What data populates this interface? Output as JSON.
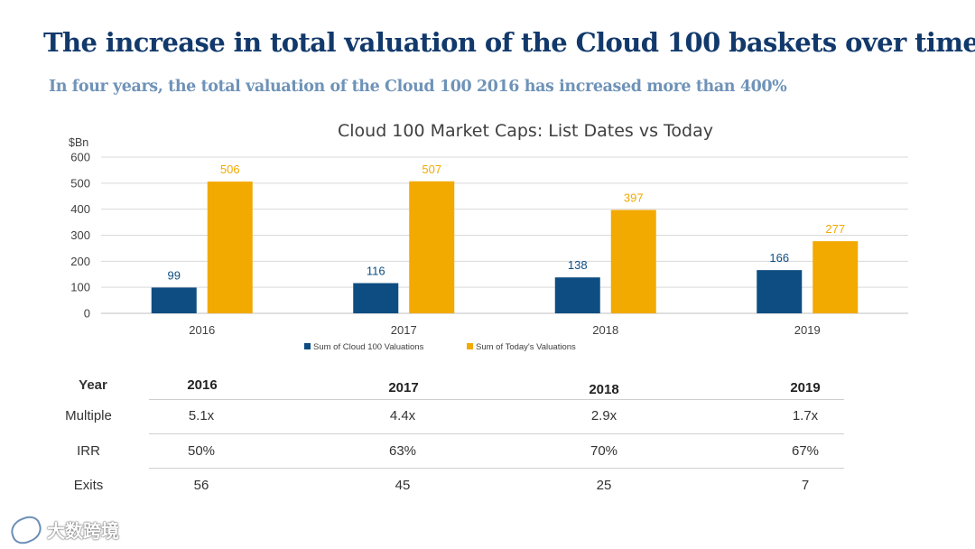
{
  "page": {
    "title": "The increase in total valuation of the Cloud 100 baskets over time",
    "subtitle": "In four years, the total valuation of the Cloud 100 2016 has increased more than 400%"
  },
  "chart_data": {
    "type": "bar",
    "title": "Cloud 100 Market Caps: List Dates vs Today",
    "ylabel": "$Bn",
    "categories": [
      "2016",
      "2017",
      "2018",
      "2019"
    ],
    "ylim": [
      0,
      600
    ],
    "yticks": [
      "0",
      "100",
      "200",
      "300",
      "400",
      "500",
      "600"
    ],
    "grid": true,
    "legend_position": "bottom",
    "series": [
      {
        "name": "Sum of Cloud 100 Valuations",
        "values": [
          99,
          116,
          138,
          166
        ],
        "color": "#0d4d82"
      },
      {
        "name": "Sum of Today's Valuations",
        "values": [
          506,
          507,
          397,
          277
        ],
        "color": "#f2a900"
      }
    ]
  },
  "table": {
    "header_label": "Year",
    "years": [
      "2016",
      "2017",
      "2018",
      "2019"
    ],
    "rows": [
      {
        "label": "Multiple",
        "values": [
          "5.1x",
          "4.4x",
          "2.9x",
          "1.7x"
        ]
      },
      {
        "label": "IRR",
        "values": [
          "50%",
          "63%",
          "70%",
          "67%"
        ]
      },
      {
        "label": "Exits",
        "values": [
          "56",
          "45",
          "25",
          "7"
        ]
      }
    ]
  },
  "watermark": {
    "text": "大数跨境",
    "icon": "brand-logo-icon"
  },
  "colors": {
    "title": "#12396b",
    "subtitle": "#6f93b8",
    "series1": "#0d4d82",
    "series2": "#f2a900"
  }
}
